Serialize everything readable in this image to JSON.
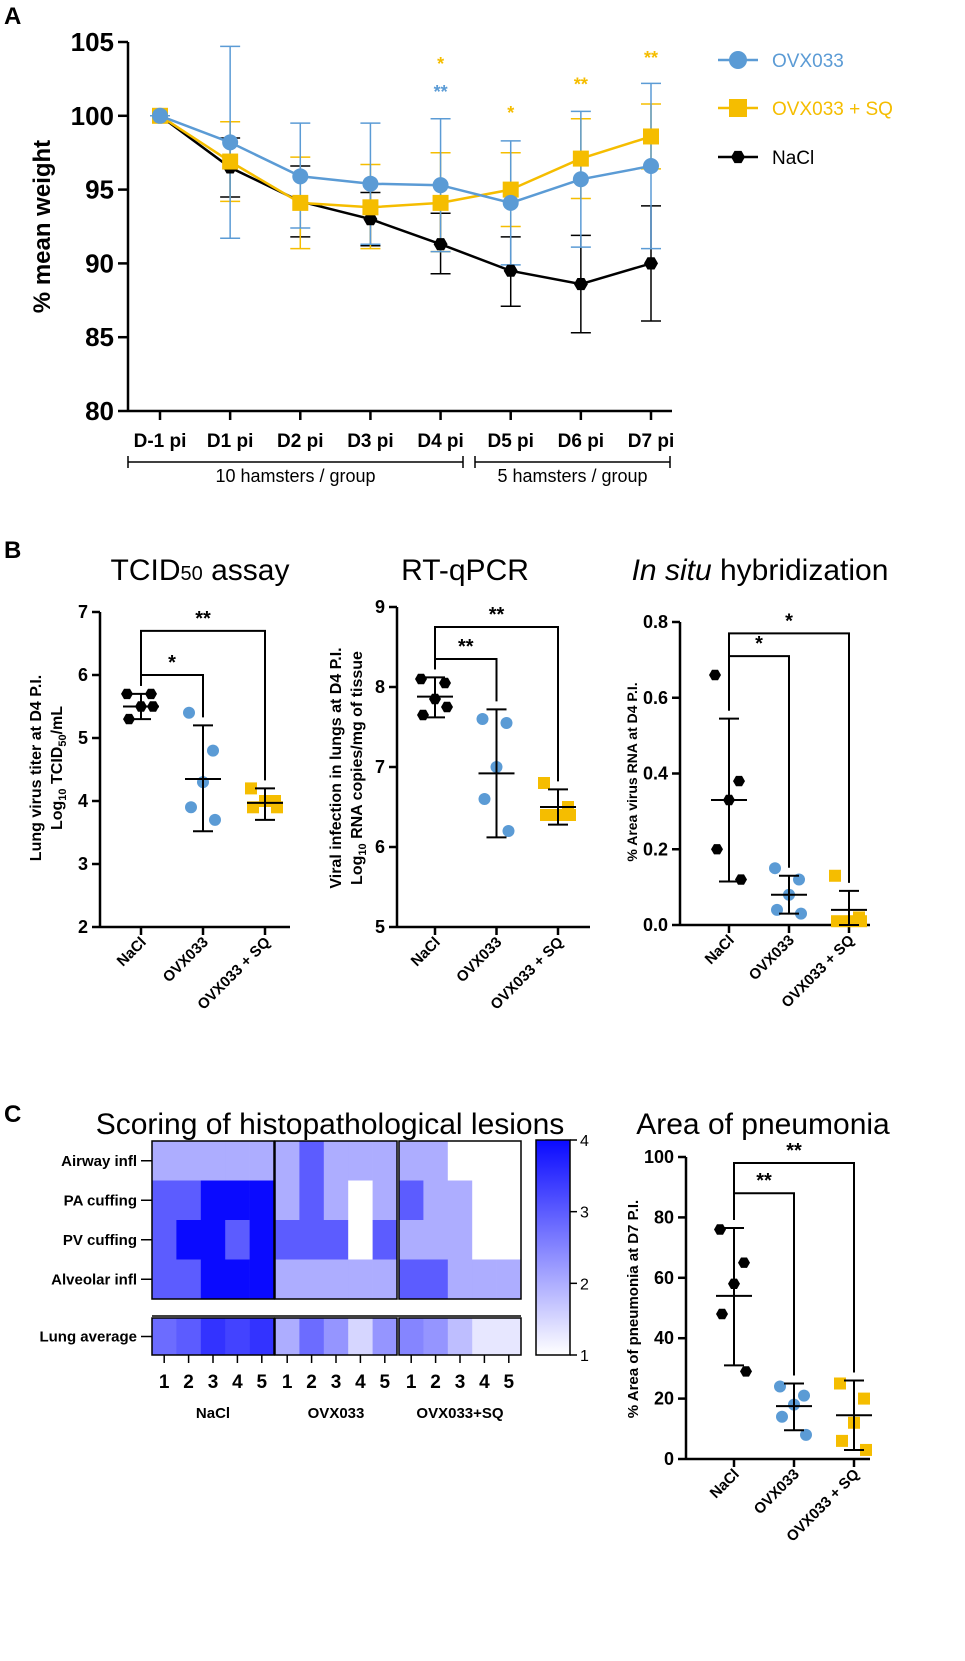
{
  "panel_labels": {
    "a": "A",
    "b": "B",
    "c": "C"
  },
  "colors": {
    "ovx": "#5b9bd5",
    "sq": "#f5bd00",
    "nacl": "#000000",
    "heat_low": "#ffffff",
    "heat_high": "#0a0aff"
  },
  "chart_data": [
    {
      "id": "A",
      "type": "line",
      "title": "",
      "xlabel": "",
      "ylabel": "% mean weight",
      "ylim": [
        80,
        105
      ],
      "yticks": [
        "80",
        "85",
        "90",
        "95",
        "100",
        "105"
      ],
      "categories": [
        "D-1 pi",
        "D1 pi",
        "D2 pi",
        "D3 pi",
        "D4 pi",
        "D5 pi",
        "D6 pi",
        "D7 pi"
      ],
      "group_brackets": [
        {
          "label": "10 hamsters / group",
          "from": 0,
          "to": 4
        },
        {
          "label": "5 hamsters / group",
          "from": 5,
          "to": 7
        }
      ],
      "series": [
        {
          "name": "OVX033",
          "color_key": "ovx",
          "marker": "circle",
          "values": [
            100,
            98.2,
            95.9,
            95.4,
            95.3,
            94.1,
            95.7,
            96.6
          ],
          "err_hi": [
            100,
            104.7,
            99.5,
            99.5,
            99.8,
            98.3,
            100.3,
            102.2
          ],
          "err_lo": [
            100,
            91.7,
            92.4,
            91.3,
            90.8,
            89.9,
            91.1,
            91.0
          ]
        },
        {
          "name": "OVX033 + SQ",
          "color_key": "sq",
          "marker": "square",
          "values": [
            100,
            96.9,
            94.1,
            93.8,
            94.1,
            95.0,
            97.1,
            98.6
          ],
          "err_hi": [
            100,
            99.6,
            97.2,
            96.7,
            97.5,
            97.5,
            99.8,
            100.8
          ],
          "err_lo": [
            100,
            94.2,
            91.0,
            91.0,
            90.8,
            92.5,
            94.4,
            96.4
          ]
        },
        {
          "name": "NaCl",
          "color_key": "nacl",
          "marker": "hexagon",
          "values": [
            100,
            96.5,
            94.2,
            93.0,
            91.3,
            89.5,
            88.6,
            90.0
          ],
          "err_hi": [
            100,
            98.5,
            96.6,
            94.8,
            93.4,
            91.8,
            91.9,
            93.9
          ],
          "err_lo": [
            100,
            94.5,
            91.8,
            91.2,
            89.3,
            87.1,
            85.3,
            86.1
          ]
        }
      ],
      "annotations": [
        {
          "text": "*",
          "category": 4,
          "value": 103.1,
          "color_key": "sq"
        },
        {
          "text": "**",
          "category": 4,
          "value": 101.2,
          "color_key": "ovx"
        },
        {
          "text": "*",
          "category": 5,
          "value": 99.8,
          "color_key": "sq"
        },
        {
          "text": "**",
          "category": 6,
          "value": 101.7,
          "color_key": "sq"
        },
        {
          "text": "**",
          "category": 7,
          "value": 103.5,
          "color_key": "sq"
        }
      ]
    },
    {
      "id": "B1",
      "type": "scatter",
      "title": "TCID50 assay",
      "title_main": "TCID",
      "title_sub": "50",
      "title_rest": " assay",
      "ylabel_line1": "Lung virus titer at D4 P.I.",
      "ylabel_line2_pre": "Log",
      "ylabel_line2_sub1": "10",
      "ylabel_line2_mid": " TCID",
      "ylabel_line2_sub2": "50",
      "ylabel_line2_post": "/mL",
      "ylim": [
        2,
        7
      ],
      "yticks": [
        "2",
        "3",
        "4",
        "5",
        "6",
        "7"
      ],
      "categories": [
        "NaCl",
        "OVX033",
        "OVX033 + SQ"
      ],
      "groups": [
        {
          "color_key": "nacl",
          "marker": "hexagon",
          "points": [
            5.7,
            5.7,
            5.5,
            5.3,
            5.5
          ],
          "mean": 5.5,
          "sd_hi": 5.7,
          "sd_lo": 5.3
        },
        {
          "color_key": "ovx",
          "marker": "circle",
          "points": [
            5.4,
            4.8,
            4.3,
            3.9,
            3.7
          ],
          "mean": 4.35,
          "sd_hi": 5.2,
          "sd_lo": 3.52
        },
        {
          "color_key": "sq",
          "marker": "square",
          "points": [
            4.2,
            4.0,
            4.0,
            3.9,
            3.9
          ],
          "mean": 3.97,
          "sd_hi": 4.2,
          "sd_lo": 3.7
        }
      ],
      "brackets": [
        {
          "label": "*",
          "to": 1,
          "level": 6.0
        },
        {
          "label": "**",
          "to": 2,
          "level": 6.7
        }
      ]
    },
    {
      "id": "B2",
      "type": "scatter",
      "title": "RT-qPCR",
      "ylabel_line1": "Viral infection in lungs at D4 P.I.",
      "ylabel_line2_pre": "Log",
      "ylabel_line2_sub1": "10",
      "ylabel_line2_post": " RNA copies/mg of tissue",
      "ylim": [
        5,
        9
      ],
      "yticks": [
        "5",
        "6",
        "7",
        "8",
        "9"
      ],
      "categories": [
        "NaCl",
        "OVX033",
        "OVX033 + SQ"
      ],
      "groups": [
        {
          "color_key": "nacl",
          "marker": "hexagon",
          "points": [
            8.1,
            8.05,
            7.85,
            7.65,
            7.75
          ],
          "mean": 7.88,
          "sd_hi": 8.12,
          "sd_lo": 7.62
        },
        {
          "color_key": "ovx",
          "marker": "circle",
          "points": [
            7.6,
            7.55,
            7.0,
            6.6,
            6.2
          ],
          "mean": 6.92,
          "sd_hi": 7.72,
          "sd_lo": 6.12
        },
        {
          "color_key": "sq",
          "marker": "square",
          "points": [
            6.8,
            6.5,
            6.4,
            6.4,
            6.4
          ],
          "mean": 6.5,
          "sd_hi": 6.72,
          "sd_lo": 6.28
        }
      ],
      "brackets": [
        {
          "label": "**",
          "to": 1,
          "level": 8.35
        },
        {
          "label": "**",
          "to": 2,
          "level": 8.75
        }
      ]
    },
    {
      "id": "B3",
      "type": "scatter",
      "title": "In situ hybridization",
      "title_italic": "In situ",
      "title_rest": " hybridization",
      "ylabel": "% Area virus RNA at D4 P.I.",
      "ylim": [
        0,
        0.8
      ],
      "yticks": [
        "0.0",
        "0.2",
        "0.4",
        "0.6",
        "0.8"
      ],
      "categories": [
        "NaCl",
        "OVX033",
        "OVX033 + SQ"
      ],
      "groups": [
        {
          "color_key": "nacl",
          "marker": "hexagon",
          "points": [
            0.66,
            0.38,
            0.33,
            0.2,
            0.12
          ],
          "mean": 0.33,
          "sd_hi": 0.545,
          "sd_lo": 0.115
        },
        {
          "color_key": "ovx",
          "marker": "circle",
          "points": [
            0.15,
            0.12,
            0.08,
            0.04,
            0.03
          ],
          "mean": 0.08,
          "sd_hi": 0.13,
          "sd_lo": 0.03
        },
        {
          "color_key": "sq",
          "marker": "square",
          "points": [
            0.13,
            0.02,
            0.01,
            0.01,
            0.01
          ],
          "mean": 0.04,
          "sd_hi": 0.09,
          "sd_lo": 0.0
        }
      ],
      "brackets": [
        {
          "label": "*",
          "to": 1,
          "level": 0.71
        },
        {
          "label": "*",
          "to": 2,
          "level": 0.77
        }
      ]
    },
    {
      "id": "C1",
      "type": "heatmap",
      "title": "Scoring of histopathological lesions",
      "rows": [
        "Airway infl",
        "PA cuffing",
        "PV cuffing",
        "Alveolar infl"
      ],
      "summary_row": "Lung average",
      "column_labels": [
        "1",
        "2",
        "3",
        "4",
        "5"
      ],
      "groups": [
        {
          "name": "NaCl",
          "values": [
            [
              2,
              2,
              2,
              2,
              2
            ],
            [
              3,
              3,
              4,
              4,
              4
            ],
            [
              3,
              4,
              4,
              3,
              4
            ],
            [
              3,
              3,
              4,
              4,
              4
            ]
          ],
          "averages": [
            2.8,
            3.0,
            3.5,
            3.3,
            3.5
          ]
        },
        {
          "name": "OVX033",
          "values": [
            [
              2,
              3,
              2,
              2,
              2
            ],
            [
              2,
              3,
              2,
              1,
              2
            ],
            [
              3,
              3,
              3,
              1,
              3
            ],
            [
              2,
              2,
              2,
              2,
              2
            ]
          ],
          "averages": [
            2.0,
            2.8,
            2.3,
            1.5,
            2.3
          ]
        },
        {
          "name": "OVX033+SQ",
          "values": [
            [
              2,
              2,
              1,
              1,
              1
            ],
            [
              3,
              2,
              2,
              1,
              1
            ],
            [
              2,
              2,
              2,
              1,
              1
            ],
            [
              3,
              3,
              2,
              2,
              2
            ]
          ],
          "averages": [
            2.5,
            2.3,
            1.8,
            1.3,
            1.3
          ]
        }
      ],
      "scale": {
        "min": 1,
        "max": 4,
        "ticks": [
          "1",
          "2",
          "3",
          "4"
        ]
      }
    },
    {
      "id": "C2",
      "type": "scatter",
      "title": "Area of pneumonia",
      "ylabel": "% Area of pneumonia at D7 P.I.",
      "ylim": [
        0,
        100
      ],
      "yticks": [
        "0",
        "20",
        "40",
        "60",
        "80",
        "100"
      ],
      "categories": [
        "NaCl",
        "OVX033",
        "OVX033 + SQ"
      ],
      "groups": [
        {
          "color_key": "nacl",
          "marker": "hexagon",
          "points": [
            76,
            65,
            58,
            48,
            29
          ],
          "mean": 54,
          "sd_hi": 76.5,
          "sd_lo": 31
        },
        {
          "color_key": "ovx",
          "marker": "circle",
          "points": [
            24,
            21,
            18,
            14,
            8
          ],
          "mean": 17.5,
          "sd_hi": 25,
          "sd_lo": 9.5
        },
        {
          "color_key": "sq",
          "marker": "square",
          "points": [
            25,
            20,
            12,
            6,
            3
          ],
          "mean": 14.5,
          "sd_hi": 26,
          "sd_lo": 3
        }
      ],
      "brackets": [
        {
          "label": "**",
          "to": 1,
          "level": 88
        },
        {
          "label": "**",
          "to": 2,
          "level": 98
        }
      ]
    }
  ]
}
